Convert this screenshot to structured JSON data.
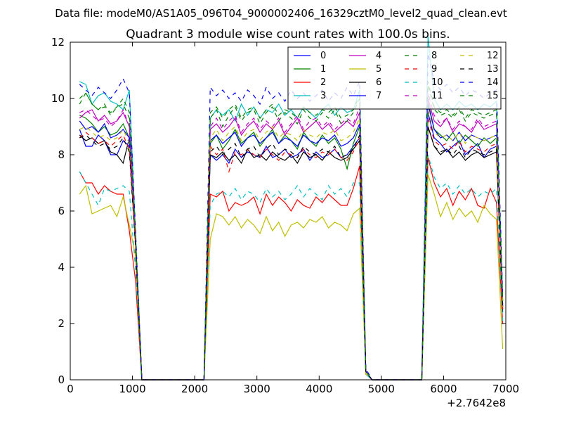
{
  "chart_data": {
    "type": "line",
    "suptitle": "Data file: modeM0/AS1A05_096T04_9000002406_16329cztM0_level2_quad_clean.evt",
    "title": "Quadrant 3 module wise count rates with 100.0s bins.",
    "xlabel": "",
    "ylabel": "",
    "xlim": [
      0,
      7000
    ],
    "ylim": [
      0,
      12
    ],
    "x_offset_label": "+2.7642e8",
    "x_ticks": [
      0,
      1000,
      2000,
      3000,
      4000,
      5000,
      6000,
      7000
    ],
    "x_tick_labels": [
      "0",
      "1000",
      "2000",
      "3000",
      "4000",
      "5000",
      "6000",
      "7000"
    ],
    "y_ticks": [
      0,
      2,
      4,
      6,
      8,
      10,
      12
    ],
    "y_tick_labels": [
      "0",
      "2",
      "4",
      "6",
      "8",
      "10",
      "12"
    ],
    "legend_position": "top-right",
    "legend_columns": 4,
    "x": [
      150,
      250,
      350,
      450,
      550,
      650,
      750,
      850,
      950,
      1050,
      1150,
      1250,
      1350,
      1450,
      1550,
      1650,
      1750,
      1850,
      1950,
      2050,
      2150,
      2250,
      2350,
      2450,
      2550,
      2650,
      2750,
      2850,
      2950,
      3050,
      3150,
      3250,
      3350,
      3450,
      3550,
      3650,
      3750,
      3850,
      3950,
      4050,
      4150,
      4250,
      4350,
      4450,
      4550,
      4650,
      4750,
      4850,
      4950,
      5050,
      5150,
      5250,
      5350,
      5450,
      5550,
      5650,
      5750,
      5850,
      5950,
      6050,
      6150,
      6250,
      6350,
      6450,
      6550,
      6650,
      6750,
      6850,
      6950
    ],
    "series": [
      {
        "name": "0",
        "color": "#0000ff",
        "dash": "solid",
        "values": [
          8.9,
          8.3,
          8.3,
          8.7,
          8.5,
          8.0,
          8.0,
          8.5,
          8.3,
          4.8,
          0,
          0,
          0,
          0,
          0,
          0,
          0,
          0,
          0,
          0,
          0,
          8.0,
          7.8,
          8.0,
          7.7,
          8.2,
          7.9,
          8.1,
          8.0,
          7.9,
          8.3,
          7.9,
          8.0,
          8.2,
          7.9,
          8.0,
          8.2,
          7.8,
          8.1,
          7.9,
          8.0,
          8.2,
          7.9,
          8.0,
          8.3,
          8.6,
          0.3,
          0,
          0,
          0,
          0,
          0,
          0,
          0,
          0,
          0,
          9.5,
          8.6,
          8.4,
          8.1,
          8.3,
          8.5,
          8.0,
          8.2,
          8.4,
          7.9,
          8.2,
          8.3,
          2.5
        ]
      },
      {
        "name": "1",
        "color": "#008000",
        "dash": "solid",
        "values": [
          9.4,
          9.3,
          9.1,
          8.8,
          9.0,
          8.7,
          8.8,
          9.1,
          8.6,
          4.9,
          0,
          0,
          0,
          0,
          0,
          0,
          0,
          0,
          0,
          0,
          0,
          8.4,
          8.7,
          8.2,
          8.5,
          8.9,
          8.4,
          8.6,
          8.8,
          8.3,
          8.6,
          8.9,
          8.4,
          8.7,
          8.5,
          8.2,
          8.8,
          8.5,
          8.3,
          8.7,
          8.4,
          8.6,
          8.2,
          7.5,
          8.4,
          9.0,
          0.3,
          0,
          0,
          0,
          0,
          0,
          0,
          0,
          0,
          0,
          9.9,
          8.9,
          8.7,
          8.5,
          8.8,
          8.4,
          8.7,
          8.5,
          8.3,
          8.6,
          8.4,
          8.6,
          2.6
        ]
      },
      {
        "name": "2",
        "color": "#ff0000",
        "dash": "solid",
        "values": [
          7.4,
          7.0,
          7.0,
          6.6,
          6.9,
          6.7,
          6.6,
          6.6,
          5.3,
          3.5,
          0,
          0,
          0,
          0,
          0,
          0,
          0,
          0,
          0,
          0,
          0,
          6.6,
          6.5,
          6.7,
          6.0,
          6.3,
          6.2,
          6.3,
          6.5,
          5.9,
          6.6,
          6.2,
          6.5,
          6.3,
          6.0,
          6.4,
          6.2,
          6.1,
          6.5,
          6.3,
          6.6,
          6.4,
          6.2,
          6.2,
          6.8,
          7.6,
          0.2,
          0,
          0,
          0,
          0,
          0,
          0,
          0,
          0,
          0,
          7.9,
          7.0,
          6.5,
          6.8,
          6.2,
          6.7,
          6.4,
          6.8,
          6.2,
          6.1,
          6.8,
          6.3,
          2.0
        ]
      },
      {
        "name": "3",
        "color": "#00bfbf",
        "dash": "solid",
        "values": [
          10.6,
          10.5,
          9.8,
          10.1,
          10.2,
          9.9,
          9.8,
          9.6,
          10.3,
          5.2,
          0,
          0,
          0,
          0,
          0,
          0,
          0,
          0,
          0,
          0,
          0,
          9.3,
          9.6,
          9.4,
          9.6,
          9.2,
          9.8,
          9.4,
          9.7,
          9.3,
          9.6,
          9.5,
          9.8,
          9.4,
          9.6,
          9.3,
          9.7,
          9.5,
          9.3,
          9.6,
          9.8,
          9.4,
          9.7,
          9.5,
          9.6,
          10.3,
          0.3,
          0,
          0,
          0,
          0,
          0,
          0,
          0,
          0,
          0,
          12.2,
          10.0,
          9.6,
          9.8,
          9.6,
          9.9,
          9.7,
          9.8,
          9.6,
          9.8,
          9.7,
          9.9,
          2.8
        ]
      },
      {
        "name": "4",
        "color": "#bf00bf",
        "dash": "solid",
        "values": [
          9.3,
          9.5,
          9.6,
          9.2,
          9.4,
          9.1,
          9.2,
          9.5,
          9.0,
          4.9,
          0,
          0,
          0,
          0,
          0,
          0,
          0,
          0,
          0,
          0,
          0,
          8.9,
          9.1,
          8.8,
          9.0,
          9.3,
          8.7,
          9.0,
          9.2,
          8.8,
          9.1,
          8.9,
          9.2,
          8.7,
          9.0,
          9.3,
          8.8,
          9.0,
          9.2,
          8.9,
          9.1,
          8.8,
          9.0,
          9.2,
          9.0,
          9.5,
          0.3,
          0,
          0,
          0,
          0,
          0,
          0,
          0,
          0,
          0,
          10.0,
          9.2,
          9.0,
          9.3,
          8.8,
          9.1,
          9.0,
          8.8,
          9.2,
          8.9,
          9.0,
          9.1,
          2.6
        ]
      },
      {
        "name": "5",
        "color": "#bfbf00",
        "dash": "solid",
        "values": [
          6.6,
          6.9,
          5.9,
          6.0,
          6.1,
          6.2,
          5.8,
          6.5,
          5.5,
          4.4,
          0,
          0,
          0,
          0,
          0,
          0,
          0,
          0,
          0,
          0,
          0,
          5.0,
          5.9,
          5.8,
          5.5,
          5.8,
          5.4,
          5.7,
          5.5,
          5.2,
          5.8,
          5.3,
          5.6,
          5.1,
          5.5,
          5.6,
          5.4,
          5.7,
          5.6,
          5.8,
          5.4,
          5.6,
          5.5,
          5.3,
          5.9,
          6.1,
          0.2,
          0,
          0,
          0,
          0,
          0,
          0,
          0,
          0,
          0,
          7.3,
          6.6,
          5.8,
          6.3,
          5.7,
          6.1,
          5.8,
          6.0,
          5.6,
          6.2,
          5.9,
          5.7,
          1.1
        ]
      },
      {
        "name": "6",
        "color": "#000000",
        "dash": "solid",
        "values": [
          8.7,
          8.5,
          8.6,
          8.4,
          8.5,
          8.1,
          8.0,
          7.7,
          8.6,
          4.8,
          0,
          0,
          0,
          0,
          0,
          0,
          0,
          0,
          0,
          0,
          0,
          8.0,
          7.9,
          8.1,
          7.8,
          8.0,
          7.7,
          8.2,
          7.9,
          8.0,
          7.8,
          8.1,
          7.9,
          7.8,
          8.0,
          7.7,
          8.1,
          7.9,
          8.0,
          7.8,
          8.1,
          7.9,
          7.8,
          7.9,
          8.2,
          8.5,
          0.3,
          0,
          0,
          0,
          0,
          0,
          0,
          0,
          0,
          0,
          9.0,
          8.3,
          8.0,
          8.2,
          7.9,
          8.1,
          7.8,
          8.0,
          8.1,
          7.9,
          8.0,
          8.1,
          2.4
        ]
      },
      {
        "name": "7",
        "color": "#0000ff",
        "dash": "solid",
        "values": [
          9.2,
          8.9,
          9.0,
          8.8,
          9.1,
          8.6,
          8.7,
          8.9,
          8.6,
          4.9,
          0,
          0,
          0,
          0,
          0,
          0,
          0,
          0,
          0,
          0,
          0,
          8.5,
          8.7,
          8.4,
          8.6,
          8.8,
          8.3,
          8.6,
          8.7,
          8.4,
          8.6,
          8.8,
          8.4,
          8.6,
          8.5,
          8.3,
          8.7,
          8.5,
          8.4,
          8.6,
          8.5,
          8.7,
          8.3,
          8.4,
          8.6,
          9.1,
          0.3,
          0,
          0,
          0,
          0,
          0,
          0,
          0,
          0,
          0,
          9.8,
          8.9,
          8.6,
          8.7,
          8.5,
          8.8,
          8.5,
          8.7,
          8.6,
          8.5,
          8.6,
          8.7,
          2.6
        ]
      },
      {
        "name": "8",
        "color": "#008000",
        "dash": "dashed",
        "values": [
          9.8,
          10.2,
          9.8,
          9.6,
          9.8,
          9.4,
          9.7,
          9.8,
          9.3,
          5.0,
          0,
          0,
          0,
          0,
          0,
          0,
          0,
          0,
          0,
          0,
          0,
          9.3,
          9.6,
          9.0,
          9.4,
          9.7,
          9.2,
          9.5,
          9.6,
          9.1,
          9.5,
          9.7,
          9.2,
          9.5,
          9.3,
          9.1,
          9.6,
          9.3,
          9.2,
          9.5,
          9.3,
          9.6,
          9.1,
          9.2,
          9.5,
          10.0,
          0.3,
          0,
          0,
          0,
          0,
          0,
          0,
          0,
          0,
          0,
          10.5,
          9.6,
          9.4,
          9.5,
          9.3,
          9.6,
          9.2,
          9.5,
          9.4,
          9.3,
          9.4,
          9.5,
          2.8
        ]
      },
      {
        "name": "9",
        "color": "#ff0000",
        "dash": "dashed",
        "values": [
          8.6,
          8.8,
          8.6,
          8.4,
          8.5,
          8.3,
          8.5,
          8.7,
          8.2,
          4.8,
          0,
          0,
          0,
          0,
          0,
          0,
          0,
          0,
          0,
          0,
          0,
          8.3,
          8.0,
          8.2,
          7.4,
          8.1,
          8.0,
          8.2,
          8.0,
          7.9,
          8.2,
          8.0,
          7.8,
          8.1,
          8.0,
          7.9,
          8.2,
          8.0,
          7.9,
          8.1,
          8.0,
          8.2,
          7.9,
          7.8,
          8.1,
          8.6,
          0.3,
          0,
          0,
          0,
          0,
          0,
          0,
          0,
          0,
          0,
          9.3,
          8.5,
          8.3,
          8.4,
          8.2,
          8.5,
          8.1,
          8.3,
          8.2,
          8.1,
          8.3,
          8.4,
          2.5
        ]
      },
      {
        "name": "10",
        "color": "#00bfbf",
        "dash": "dashed",
        "values": [
          7.4,
          7.0,
          6.6,
          6.2,
          6.8,
          6.7,
          6.8,
          6.9,
          6.7,
          3.9,
          0,
          0,
          0,
          0,
          0,
          0,
          0,
          0,
          0,
          0,
          0,
          6.2,
          6.6,
          6.7,
          6.5,
          6.8,
          6.4,
          6.7,
          6.6,
          6.3,
          6.8,
          6.5,
          6.7,
          6.4,
          6.6,
          6.9,
          6.5,
          6.8,
          6.6,
          6.4,
          6.9,
          6.6,
          6.8,
          6.5,
          7.0,
          7.0,
          0.2,
          0,
          0,
          0,
          0,
          0,
          0,
          0,
          0,
          0,
          8.0,
          7.2,
          6.8,
          7.0,
          6.6,
          6.9,
          6.6,
          6.8,
          6.5,
          6.7,
          6.6,
          6.8,
          2.1
        ]
      },
      {
        "name": "11",
        "color": "#bf00bf",
        "dash": "dashed",
        "values": [
          9.5,
          9.6,
          9.4,
          9.2,
          9.3,
          9.0,
          9.2,
          9.6,
          9.0,
          5.0,
          0,
          0,
          0,
          0,
          0,
          0,
          0,
          0,
          0,
          0,
          0,
          9.0,
          9.3,
          8.9,
          9.2,
          9.4,
          8.8,
          9.1,
          9.3,
          8.9,
          9.2,
          9.0,
          9.3,
          8.8,
          9.1,
          9.4,
          8.9,
          9.2,
          9.3,
          9.0,
          9.2,
          8.9,
          9.1,
          9.3,
          9.1,
          9.7,
          0.3,
          0,
          0,
          0,
          0,
          0,
          0,
          0,
          0,
          0,
          10.2,
          9.4,
          9.1,
          9.3,
          8.9,
          9.2,
          9.0,
          8.9,
          9.3,
          9.0,
          9.1,
          9.2,
          2.7
        ]
      },
      {
        "name": "12",
        "color": "#bfbf00",
        "dash": "dashed",
        "values": [
          8.9,
          9.0,
          8.8,
          8.6,
          8.7,
          8.5,
          8.6,
          8.9,
          8.4,
          4.8,
          0,
          0,
          0,
          0,
          0,
          0,
          0,
          0,
          0,
          0,
          0,
          8.6,
          8.9,
          8.5,
          8.8,
          9.0,
          8.5,
          8.8,
          8.9,
          8.5,
          8.8,
          9.0,
          8.6,
          8.8,
          8.7,
          8.5,
          8.9,
          8.7,
          8.6,
          8.8,
          8.7,
          8.9,
          8.5,
          8.6,
          8.8,
          9.3,
          0.3,
          0,
          0,
          0,
          0,
          0,
          0,
          0,
          0,
          0,
          9.6,
          8.8,
          8.6,
          8.7,
          8.5,
          8.8,
          8.4,
          8.7,
          8.6,
          8.5,
          8.6,
          8.7,
          2.6
        ]
      },
      {
        "name": "13",
        "color": "#000000",
        "dash": "dashed",
        "values": [
          8.6,
          8.7,
          8.5,
          8.3,
          8.4,
          8.2,
          8.3,
          8.6,
          8.1,
          4.7,
          0,
          0,
          0,
          0,
          0,
          0,
          0,
          0,
          0,
          0,
          0,
          8.1,
          8.3,
          8.0,
          8.2,
          8.4,
          7.9,
          8.2,
          8.3,
          7.9,
          8.2,
          8.4,
          8.0,
          8.2,
          8.1,
          7.9,
          8.3,
          8.1,
          8.0,
          8.2,
          8.1,
          8.3,
          7.9,
          8.0,
          8.2,
          8.7,
          0.3,
          0,
          0,
          0,
          0,
          0,
          0,
          0,
          0,
          0,
          9.0,
          8.3,
          8.1,
          8.2,
          8.0,
          8.3,
          7.9,
          8.2,
          8.1,
          8.0,
          8.1,
          8.2,
          2.5
        ]
      },
      {
        "name": "14",
        "color": "#0000ff",
        "dash": "dashed",
        "values": [
          10.5,
          10.3,
          10.1,
          10.4,
          10.2,
          10.0,
          10.3,
          10.7,
          10.2,
          5.3,
          0,
          0,
          0,
          0,
          0,
          0,
          0,
          0,
          0,
          0,
          0,
          10.4,
          10.1,
          10.3,
          10.0,
          10.2,
          9.9,
          10.3,
          10.1,
          9.8,
          10.4,
          10.0,
          10.2,
          9.9,
          10.3,
          10.0,
          10.2,
          9.9,
          10.1,
          10.3,
          9.9,
          10.2,
          10.0,
          10.4,
          10.1,
          10.6,
          0.4,
          0,
          0,
          0,
          0,
          0,
          0,
          0,
          0,
          0,
          11.6,
          10.6,
          10.3,
          10.5,
          10.2,
          10.4,
          10.1,
          10.3,
          10.2,
          10.0,
          10.2,
          10.3,
          3.0
        ]
      },
      {
        "name": "15",
        "color": "#008000",
        "dash": "dashed",
        "values": [
          10.0,
          10.2,
          9.8,
          9.6,
          9.7,
          9.5,
          9.7,
          10.0,
          9.5,
          5.1,
          0,
          0,
          0,
          0,
          0,
          0,
          0,
          0,
          0,
          0,
          0,
          9.5,
          9.7,
          9.3,
          9.6,
          9.8,
          9.3,
          9.6,
          9.7,
          9.3,
          9.6,
          9.8,
          9.4,
          9.6,
          9.5,
          9.3,
          9.7,
          9.5,
          9.4,
          9.6,
          9.5,
          9.7,
          9.3,
          9.4,
          9.6,
          10.1,
          0.3,
          0,
          0,
          0,
          0,
          0,
          0,
          0,
          0,
          0,
          10.6,
          9.7,
          9.5,
          9.6,
          9.4,
          9.7,
          9.3,
          9.6,
          9.5,
          9.4,
          9.5,
          9.6,
          2.9
        ]
      }
    ]
  }
}
